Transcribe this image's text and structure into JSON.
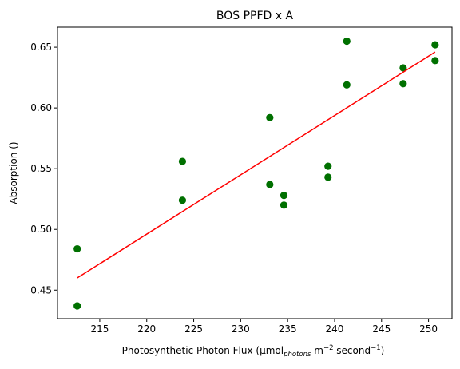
{
  "chart_data": {
    "type": "scatter",
    "title": "BOS PPFD x A",
    "xlabel": {
      "main": "Photosynthetic Photon Flux (µmol",
      "sub": "photons",
      "mid": " m",
      "sup1": "−2",
      "mid2": " second",
      "sup2": "−1",
      "end": ")"
    },
    "ylabel": "Absorption ()",
    "xlim": [
      210.5,
      252.5
    ],
    "ylim": [
      0.4265,
      0.6665
    ],
    "xticks": [
      215,
      220,
      225,
      230,
      235,
      240,
      245,
      250
    ],
    "yticks": [
      0.45,
      0.5,
      0.55,
      0.6,
      0.65
    ],
    "xtick_labels": [
      "215",
      "220",
      "225",
      "230",
      "235",
      "240",
      "245",
      "250"
    ],
    "ytick_labels": [
      "0.45",
      "0.50",
      "0.55",
      "0.60",
      "0.65"
    ],
    "grid": false,
    "series": [
      {
        "kind": "scatter",
        "color": "#007000",
        "x": [
          212.6,
          212.6,
          223.8,
          223.8,
          233.1,
          233.1,
          234.6,
          234.6,
          239.3,
          239.3,
          241.3,
          241.3,
          247.3,
          247.3,
          250.7,
          250.7
        ],
        "y": [
          0.484,
          0.437,
          0.556,
          0.524,
          0.592,
          0.537,
          0.528,
          0.52,
          0.552,
          0.543,
          0.655,
          0.619,
          0.633,
          0.62,
          0.652,
          0.639
        ]
      },
      {
        "kind": "line",
        "color": "#ff0000",
        "x": [
          212.6,
          250.7
        ],
        "y": [
          0.46,
          0.646
        ]
      }
    ]
  }
}
